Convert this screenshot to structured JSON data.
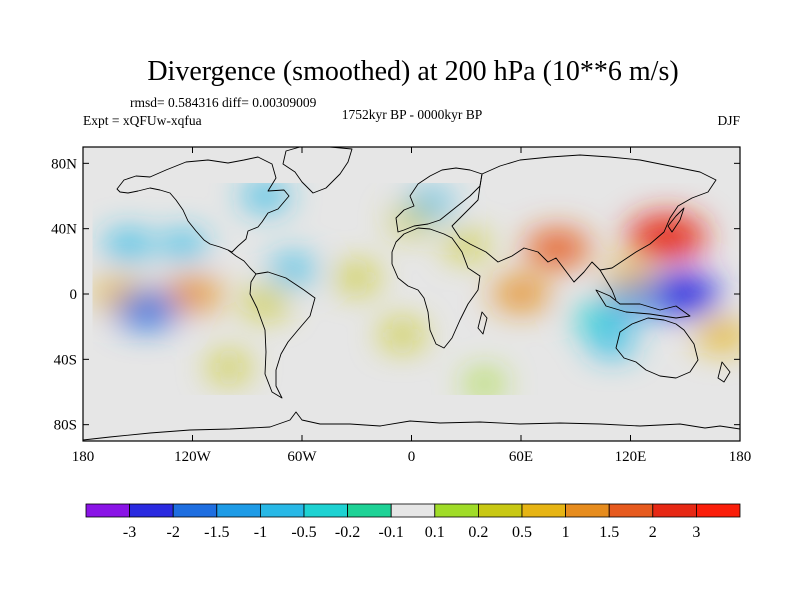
{
  "chart_data": {
    "type": "heatmap",
    "title": "Divergence (smoothed) at 200 hPa (10**6 m/s)",
    "stats_text": "rmsd= 0.584316 diff= 0.00309009",
    "experiment": "Expt = xQFUw-xqfua",
    "period": "1752kyr BP - 0000kyr BP",
    "season": "DJF",
    "lon_range": [
      -180,
      180
    ],
    "lat_range": [
      -90,
      90
    ],
    "x_ticks": [
      {
        "value": -180,
        "label": "180"
      },
      {
        "value": -120,
        "label": "120W"
      },
      {
        "value": -60,
        "label": "60W"
      },
      {
        "value": 0,
        "label": "0"
      },
      {
        "value": 60,
        "label": "60E"
      },
      {
        "value": 120,
        "label": "120E"
      },
      {
        "value": 180,
        "label": "180"
      }
    ],
    "y_ticks": [
      {
        "value": 80,
        "label": "80N"
      },
      {
        "value": 40,
        "label": "40N"
      },
      {
        "value": 0,
        "label": "0"
      },
      {
        "value": -40,
        "label": "40S"
      },
      {
        "value": -80,
        "label": "80S"
      }
    ],
    "colorbar": {
      "levels": [
        "-3",
        "-2",
        "-1.5",
        "-1",
        "-0.5",
        "-0.2",
        "-0.1",
        "0.1",
        "0.2",
        "0.5",
        "1",
        "1.5",
        "2",
        "3"
      ],
      "colors": [
        "#8a14e6",
        "#2a2ae0",
        "#1e6ee0",
        "#1e9be6",
        "#28b8e6",
        "#1ed2d2",
        "#1ed296",
        "#e6e6e6",
        "#a0dc28",
        "#c8c814",
        "#e6b414",
        "#e68c1e",
        "#e65a1e",
        "#e62814",
        "#fa1e0a"
      ]
    },
    "features": [
      {
        "lon": -155,
        "lat": 30,
        "value": -0.7
      },
      {
        "lon": -125,
        "lat": 30,
        "value": -0.5
      },
      {
        "lon": -65,
        "lat": 15,
        "value": -0.5
      },
      {
        "lon": -120,
        "lat": 0,
        "value": 1.2
      },
      {
        "lon": -160,
        "lat": 0,
        "value": 1.0
      },
      {
        "lon": -145,
        "lat": -10,
        "value": -1.5
      },
      {
        "lon": -80,
        "lat": -5,
        "value": 0.5
      },
      {
        "lon": -30,
        "lat": 10,
        "value": 0.4
      },
      {
        "lon": 60,
        "lat": 0,
        "value": 1.2
      },
      {
        "lon": 80,
        "lat": 28,
        "value": 1.6
      },
      {
        "lon": 120,
        "lat": 10,
        "value": 0.9
      },
      {
        "lon": 140,
        "lat": 35,
        "value": 2.4
      },
      {
        "lon": 148,
        "lat": 0,
        "value": -2.2
      },
      {
        "lon": 120,
        "lat": -5,
        "value": -1.0
      },
      {
        "lon": 100,
        "lat": -15,
        "value": -0.4
      },
      {
        "lon": 110,
        "lat": -30,
        "value": -0.6
      },
      {
        "lon": 170,
        "lat": -25,
        "value": 0.9
      },
      {
        "lon": -80,
        "lat": 60,
        "value": -0.6
      },
      {
        "lon": 10,
        "lat": 55,
        "value": -0.5
      },
      {
        "lon": 30,
        "lat": 30,
        "value": 0.3
      },
      {
        "lon": -5,
        "lat": -25,
        "value": 0.4
      },
      {
        "lon": 0,
        "lat": 45,
        "value": 0.3
      },
      {
        "lon": -100,
        "lat": -45,
        "value": 0.3
      },
      {
        "lon": 40,
        "lat": -55,
        "value": 0.2
      }
    ]
  }
}
